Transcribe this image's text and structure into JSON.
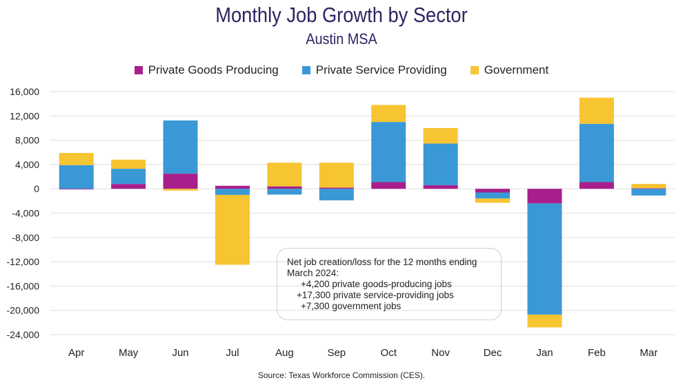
{
  "chart_data": {
    "type": "bar",
    "stacked": true,
    "title": "Monthly Job Growth by Sector",
    "subtitle": "Austin MSA",
    "categories": [
      "Apr",
      "May",
      "Jun",
      "Jul",
      "Aug",
      "Sep",
      "Oct",
      "Nov",
      "Dec",
      "Jan",
      "Feb",
      "Mar"
    ],
    "series": [
      {
        "name": "Private Goods Producing",
        "color": "#A81F8C",
        "values": [
          -100,
          800,
          2500,
          500,
          400,
          200,
          1100,
          600,
          -600,
          -2400,
          1100,
          100
        ]
      },
      {
        "name": "Private Service Providing",
        "color": "#3A98D6",
        "values": [
          3900,
          2500,
          8750,
          -1000,
          -950,
          -1900,
          9900,
          6850,
          -1000,
          -18300,
          9600,
          -1100
        ]
      },
      {
        "name": "Government",
        "color": "#F7C432",
        "values": [
          2000,
          1500,
          -300,
          -11500,
          3900,
          4100,
          2800,
          2550,
          -700,
          -2100,
          4300,
          700
        ]
      }
    ],
    "ylim": [
      -24000,
      16000
    ],
    "yticks": [
      "16,000",
      "12,000",
      "8,000",
      "4,000",
      "0",
      "-4,000",
      "-8,000",
      "-12,000",
      "-16,000",
      "-20,000",
      "-24,000"
    ],
    "ytick_values": [
      16000,
      12000,
      8000,
      4000,
      0,
      -4000,
      -8000,
      -12000,
      -16000,
      -20000,
      -24000
    ],
    "grid": true,
    "legend_position": "top",
    "annotation": {
      "lines": [
        "Net job creation/loss for the 12 months ending",
        "March 2024:",
        "+4,200 private goods-producing jobs",
        "+17,300 private service-providing jobs",
        "+7,300 government jobs"
      ]
    },
    "source": "Source: Texas Workforce Commission (CES)."
  }
}
